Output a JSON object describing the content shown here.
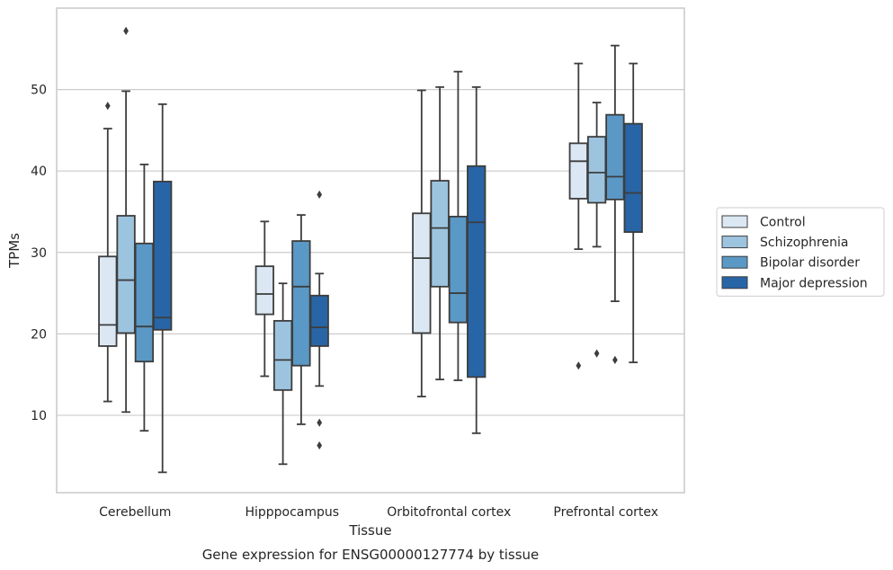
{
  "caption": "Gene expression for ENSG00000127774 by tissue",
  "chart_data": {
    "type": "box",
    "xlabel": "Tissue",
    "ylabel": "TPMs",
    "ylim": [
      0.5,
      60.0
    ],
    "yticks": [
      10,
      20,
      30,
      40,
      50
    ],
    "grid": "horizontal",
    "legend_position": "right",
    "categories": [
      "Cerebellum",
      "Hipppocampus",
      "Orbitofrontal cortex",
      "Prefrontal cortex"
    ],
    "series": [
      {
        "name": "Control",
        "color": "#dbe8f4",
        "boxes": [
          {
            "whisker_low": 11.7,
            "q1": 18.5,
            "median": 21.1,
            "q3": 29.5,
            "whisker_high": 45.2,
            "outliers": [
              48.0
            ]
          },
          {
            "whisker_low": 14.8,
            "q1": 22.4,
            "median": 24.9,
            "q3": 28.3,
            "whisker_high": 33.8,
            "outliers": []
          },
          {
            "whisker_low": 12.3,
            "q1": 20.1,
            "median": 29.3,
            "q3": 34.8,
            "whisker_high": 49.9,
            "outliers": []
          },
          {
            "whisker_low": 30.4,
            "q1": 36.6,
            "median": 41.2,
            "q3": 43.4,
            "whisker_high": 53.2,
            "outliers": [
              16.1
            ]
          }
        ]
      },
      {
        "name": "Schizophrenia",
        "color": "#9dc4df",
        "boxes": [
          {
            "whisker_low": 10.4,
            "q1": 20.1,
            "median": 26.6,
            "q3": 34.5,
            "whisker_high": 49.8,
            "outliers": [
              57.2
            ]
          },
          {
            "whisker_low": 4.0,
            "q1": 13.1,
            "median": 16.8,
            "q3": 21.6,
            "whisker_high": 26.2,
            "outliers": []
          },
          {
            "whisker_low": 14.4,
            "q1": 25.8,
            "median": 33.0,
            "q3": 38.8,
            "whisker_high": 50.3,
            "outliers": []
          },
          {
            "whisker_low": 30.7,
            "q1": 36.1,
            "median": 39.8,
            "q3": 44.2,
            "whisker_high": 48.4,
            "outliers": [
              17.6
            ]
          }
        ]
      },
      {
        "name": "Bipolar disorder",
        "color": "#5a98c6",
        "boxes": [
          {
            "whisker_low": 8.1,
            "q1": 16.6,
            "median": 20.9,
            "q3": 31.1,
            "whisker_high": 40.8,
            "outliers": []
          },
          {
            "whisker_low": 8.9,
            "q1": 16.1,
            "median": 25.8,
            "q3": 31.4,
            "whisker_high": 34.6,
            "outliers": []
          },
          {
            "whisker_low": 14.3,
            "q1": 21.4,
            "median": 25.0,
            "q3": 34.4,
            "whisker_high": 52.2,
            "outliers": []
          },
          {
            "whisker_low": 24.0,
            "q1": 36.5,
            "median": 39.3,
            "q3": 46.9,
            "whisker_high": 55.4,
            "outliers": [
              16.8
            ]
          }
        ]
      },
      {
        "name": "Major depression",
        "color": "#2865a6",
        "boxes": [
          {
            "whisker_low": 3.0,
            "q1": 20.5,
            "median": 22.0,
            "q3": 38.7,
            "whisker_high": 48.2,
            "outliers": []
          },
          {
            "whisker_low": 13.6,
            "q1": 18.5,
            "median": 20.8,
            "q3": 24.7,
            "whisker_high": 27.4,
            "outliers": [
              37.1,
              9.1,
              6.3
            ]
          },
          {
            "whisker_low": 7.8,
            "q1": 14.7,
            "median": 33.7,
            "q3": 40.6,
            "whisker_high": 50.3,
            "outliers": []
          },
          {
            "whisker_low": 16.5,
            "q1": 32.5,
            "median": 37.3,
            "q3": 45.8,
            "whisker_high": 53.2,
            "outliers": []
          }
        ]
      }
    ]
  }
}
